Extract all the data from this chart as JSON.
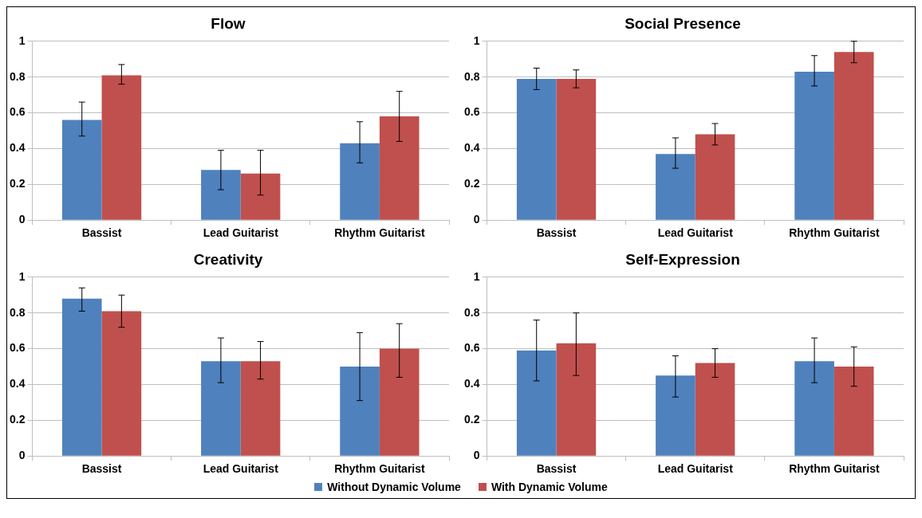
{
  "chart_data": [
    {
      "type": "bar",
      "title": "Flow",
      "categories": [
        "Bassist",
        "Lead Guitarist",
        "Rhythm Guitarist"
      ],
      "series": [
        {
          "name": "Without Dynamic Volume",
          "color": "#4f81bd",
          "values": [
            0.56,
            0.28,
            0.43
          ],
          "errors": [
            [
              0.47,
              0.66
            ],
            [
              0.17,
              0.39
            ],
            [
              0.32,
              0.55
            ]
          ]
        },
        {
          "name": "With Dynamic Volume",
          "color": "#c0504d",
          "values": [
            0.81,
            0.26,
            0.58
          ],
          "errors": [
            [
              0.76,
              0.87
            ],
            [
              0.14,
              0.39
            ],
            [
              0.44,
              0.72
            ]
          ]
        }
      ],
      "ylim": [
        0,
        1
      ],
      "yticks": [
        0,
        0.2,
        0.4,
        0.6,
        0.8,
        1
      ],
      "grid": "y",
      "legend": "bottom"
    },
    {
      "type": "bar",
      "title": "Social Presence",
      "categories": [
        "Bassist",
        "Lead Guitarist",
        "Rhythm Guitarist"
      ],
      "series": [
        {
          "color": "#4f81bd",
          "values": [
            0.79,
            0.37,
            0.83
          ],
          "errors": [
            [
              0.73,
              0.85
            ],
            [
              0.29,
              0.46
            ],
            [
              0.75,
              0.92
            ]
          ]
        },
        {
          "color": "#c0504d",
          "values": [
            0.79,
            0.48,
            0.94
          ],
          "errors": [
            [
              0.74,
              0.84
            ],
            [
              0.42,
              0.54
            ],
            [
              0.88,
              1.0
            ]
          ]
        }
      ],
      "ylim": [
        0,
        1
      ],
      "yticks": [
        0,
        0.2,
        0.4,
        0.6,
        0.8,
        1
      ],
      "grid": "y"
    },
    {
      "type": "bar",
      "title": "Creativity",
      "categories": [
        "Bassist",
        "Lead Guitarist",
        "Rhythm Guitarist"
      ],
      "series": [
        {
          "color": "#4f81bd",
          "values": [
            0.88,
            0.53,
            0.5
          ],
          "errors": [
            [
              0.81,
              0.94
            ],
            [
              0.41,
              0.66
            ],
            [
              0.31,
              0.69
            ]
          ]
        },
        {
          "color": "#c0504d",
          "values": [
            0.81,
            0.53,
            0.6
          ],
          "errors": [
            [
              0.72,
              0.9
            ],
            [
              0.43,
              0.64
            ],
            [
              0.44,
              0.74
            ]
          ]
        }
      ],
      "ylim": [
        0,
        1
      ],
      "yticks": [
        0,
        0.2,
        0.4,
        0.6,
        0.8,
        1
      ],
      "grid": "y"
    },
    {
      "type": "bar",
      "title": "Self-Expression",
      "categories": [
        "Bassist",
        "Lead Guitarist",
        "Rhythm Guitarist"
      ],
      "series": [
        {
          "color": "#4f81bd",
          "values": [
            0.59,
            0.45,
            0.53
          ],
          "errors": [
            [
              0.42,
              0.76
            ],
            [
              0.33,
              0.56
            ],
            [
              0.41,
              0.66
            ]
          ]
        },
        {
          "color": "#c0504d",
          "values": [
            0.63,
            0.52,
            0.5
          ],
          "errors": [
            [
              0.45,
              0.8
            ],
            [
              0.44,
              0.6
            ],
            [
              0.39,
              0.61
            ]
          ]
        }
      ],
      "ylim": [
        0,
        1
      ],
      "yticks": [
        0,
        0.2,
        0.4,
        0.6,
        0.8,
        1
      ],
      "grid": "y"
    }
  ]
}
